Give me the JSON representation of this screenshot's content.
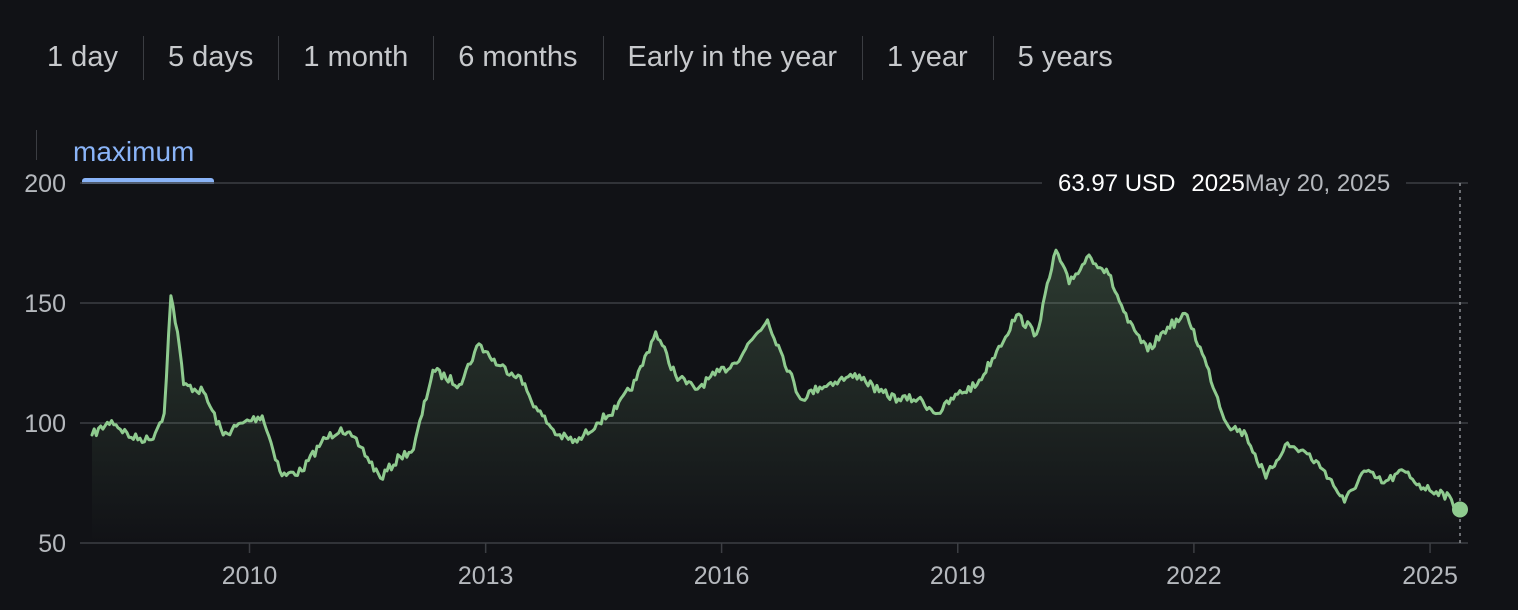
{
  "range_tabs": [
    {
      "label": "1 day"
    },
    {
      "label": "5 days"
    },
    {
      "label": "1 month"
    },
    {
      "label": "6 months"
    },
    {
      "label": "Early in the year"
    },
    {
      "label": "1 year"
    },
    {
      "label": "5 years"
    }
  ],
  "active_range": {
    "label": "maximum"
  },
  "tooltip": {
    "price": "63.97 USD",
    "year": "2025",
    "date": "May 20, 2025"
  },
  "colors": {
    "line": "#8fcb8f",
    "accent": "#8ab4f8",
    "grid": "#3c3e43",
    "background": "#111216"
  },
  "chart_data": {
    "type": "area",
    "x_range": [
      "2008-01-01",
      "2025-05-20"
    ],
    "ylim": [
      50,
      200
    ],
    "yticks": [
      50,
      100,
      150,
      200
    ],
    "xticks": [
      "2010",
      "2013",
      "2016",
      "2019",
      "2022",
      "2025"
    ],
    "x": [
      "2008-01",
      "2008-04",
      "2008-07",
      "2008-10",
      "2008-12",
      "2009-01",
      "2009-02",
      "2009-03",
      "2009-06",
      "2009-09",
      "2009-12",
      "2010-03",
      "2010-06",
      "2010-09",
      "2010-12",
      "2011-03",
      "2011-06",
      "2011-09",
      "2011-12",
      "2012-02",
      "2012-05",
      "2012-09",
      "2012-12",
      "2013-03",
      "2013-06",
      "2013-09",
      "2013-12",
      "2014-03",
      "2014-06",
      "2014-09",
      "2014-12",
      "2015-03",
      "2015-06",
      "2015-09",
      "2015-12",
      "2016-03",
      "2016-06",
      "2016-08",
      "2016-10",
      "2017-01",
      "2017-04",
      "2017-07",
      "2017-10",
      "2018-01",
      "2018-04",
      "2018-07",
      "2018-10",
      "2019-01",
      "2019-04",
      "2019-07",
      "2019-10",
      "2020-01",
      "2020-04",
      "2020-06",
      "2020-09",
      "2020-12",
      "2021-03",
      "2021-06",
      "2021-09",
      "2021-12",
      "2022-03",
      "2022-06",
      "2022-09",
      "2022-12",
      "2023-03",
      "2023-06",
      "2023-09",
      "2023-12",
      "2024-03",
      "2024-06",
      "2024-09",
      "2024-12",
      "2025-03",
      "2025-05-20"
    ],
    "series": [
      {
        "values": [
          95,
          101,
          94,
          93,
          104,
          153,
          138,
          116,
          113,
          95,
          100,
          103,
          78,
          80,
          92,
          98,
          90,
          77,
          86,
          89,
          122,
          116,
          133,
          124,
          120,
          105,
          95,
          92,
          100,
          106,
          118,
          138,
          120,
          114,
          120,
          125,
          136,
          143,
          130,
          110,
          115,
          118,
          120,
          113,
          110,
          110,
          104,
          112,
          116,
          130,
          145,
          137,
          172,
          158,
          170,
          162,
          142,
          130,
          140,
          145,
          124,
          100,
          95,
          77,
          91,
          88,
          80,
          67,
          80,
          75,
          80,
          73,
          71,
          63.97
        ]
      }
    ]
  }
}
